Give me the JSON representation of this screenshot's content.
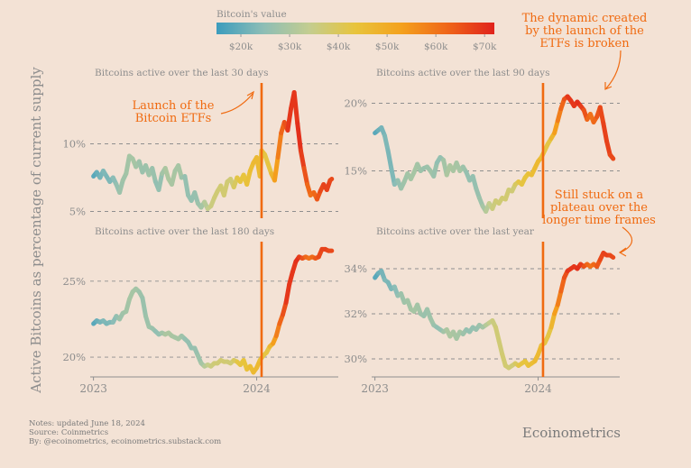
{
  "legend": {
    "title": "Bitcoin's value",
    "ticks": [
      "$20k",
      "$30k",
      "$40k",
      "$50k",
      "$60k",
      "$70k"
    ],
    "tick_values": [
      20,
      30,
      40,
      50,
      60,
      70
    ],
    "range": [
      15,
      72
    ],
    "colors": [
      "#3b9cbd",
      "#8cbdb6",
      "#c3cd90",
      "#e8c43c",
      "#f4a11d",
      "#ef6519",
      "#e0221c"
    ]
  },
  "ylabel": "Active Bitcoins as percentage of current supply",
  "annotations": {
    "etf_launch": "Launch of the\nBitcoin ETFs",
    "dynamic_broken": "The dynamic created\nby the launch of the\nETFs is broken",
    "plateau": "Still stuck on a\nplateau over the\nlonger time frames"
  },
  "notes": [
    "Notes: updated June 18, 2024",
    "Source: Coinmetrics",
    "By: @ecoinometrics, ecoinometrics.substack.com"
  ],
  "brand": "Ecoinometrics",
  "accent_color": "#f06a10",
  "chart_data": [
    {
      "type": "line",
      "title": "Bitcoins active over the last 30 days",
      "x_ticks": [
        "2023",
        "2024"
      ],
      "y_ticks": [
        "5%",
        "10%"
      ],
      "y_tick_values": [
        5,
        10
      ],
      "ylim": [
        4.5,
        14.5
      ],
      "x_range": [
        2022.98,
        2024.5
      ],
      "etf_launch_x": 2024.03,
      "x": [
        2023.0,
        2023.02,
        2023.04,
        2023.06,
        2023.08,
        2023.1,
        2023.12,
        2023.14,
        2023.16,
        2023.18,
        2023.2,
        2023.22,
        2023.24,
        2023.26,
        2023.28,
        2023.3,
        2023.32,
        2023.34,
        2023.36,
        2023.38,
        2023.4,
        2023.42,
        2023.44,
        2023.46,
        2023.48,
        2023.5,
        2023.52,
        2023.54,
        2023.56,
        2023.58,
        2023.6,
        2023.62,
        2023.64,
        2023.66,
        2023.68,
        2023.7,
        2023.72,
        2023.74,
        2023.76,
        2023.78,
        2023.8,
        2023.82,
        2023.84,
        2023.86,
        2023.88,
        2023.9,
        2023.92,
        2023.94,
        2023.96,
        2023.98,
        2024.0,
        2024.02,
        2024.03,
        2024.05,
        2024.07,
        2024.09,
        2024.11,
        2024.13,
        2024.15,
        2024.17,
        2024.19,
        2024.21,
        2024.23,
        2024.25,
        2024.27,
        2024.29,
        2024.31,
        2024.33,
        2024.35,
        2024.37,
        2024.39,
        2024.41,
        2024.43,
        2024.45,
        2024.46
      ],
      "y": [
        7.6,
        7.9,
        7.5,
        8.0,
        7.6,
        7.2,
        7.5,
        7.0,
        6.4,
        7.3,
        7.8,
        9.1,
        8.9,
        8.3,
        8.7,
        7.9,
        8.4,
        7.7,
        8.2,
        7.2,
        6.6,
        7.8,
        8.2,
        7.4,
        7.0,
        8.0,
        8.4,
        7.5,
        7.6,
        6.2,
        5.8,
        6.4,
        5.6,
        5.3,
        5.7,
        5.2,
        5.4,
        6.0,
        6.5,
        6.9,
        6.2,
        7.2,
        7.4,
        6.8,
        7.5,
        7.2,
        7.7,
        7.0,
        8.0,
        8.6,
        9.0,
        7.6,
        9.5,
        9.2,
        8.5,
        7.8,
        7.3,
        9.0,
        10.8,
        11.6,
        11.0,
        12.6,
        13.8,
        11.5,
        9.5,
        8.2,
        7.0,
        6.2,
        6.4,
        5.9,
        6.5,
        7.0,
        6.6,
        7.3,
        7.4
      ],
      "price": [
        17,
        20,
        21,
        23,
        23,
        22,
        24,
        25,
        27,
        28,
        28,
        29,
        29,
        29,
        28,
        27,
        27,
        28,
        28,
        26,
        25,
        27,
        30,
        30,
        30,
        29,
        29,
        29,
        26,
        26,
        26,
        26,
        27,
        28,
        30,
        34,
        35,
        37,
        37,
        37,
        38,
        37,
        37,
        37,
        42,
        43,
        43,
        44,
        45,
        46,
        47,
        46,
        46,
        42,
        43,
        43,
        52,
        55,
        62,
        63,
        68,
        70,
        68,
        70,
        70,
        66,
        64,
        60,
        61,
        63,
        66,
        67,
        68,
        67,
        66
      ]
    },
    {
      "type": "line",
      "title": "Bitcoins active over the last 90 days",
      "x_ticks": [],
      "y_ticks": [
        "15%",
        "20%"
      ],
      "y_tick_values": [
        15,
        20
      ],
      "ylim": [
        11.5,
        21.5
      ],
      "x_range": [
        2022.98,
        2024.5
      ],
      "etf_launch_x": 2024.03,
      "x": [
        2023.0,
        2023.02,
        2023.04,
        2023.06,
        2023.08,
        2023.1,
        2023.12,
        2023.14,
        2023.16,
        2023.18,
        2023.2,
        2023.22,
        2023.24,
        2023.26,
        2023.28,
        2023.3,
        2023.32,
        2023.34,
        2023.36,
        2023.38,
        2023.4,
        2023.42,
        2023.44,
        2023.46,
        2023.48,
        2023.5,
        2023.52,
        2023.54,
        2023.56,
        2023.58,
        2023.6,
        2023.62,
        2023.64,
        2023.66,
        2023.68,
        2023.7,
        2023.72,
        2023.74,
        2023.76,
        2023.78,
        2023.8,
        2023.82,
        2023.84,
        2023.86,
        2023.88,
        2023.9,
        2023.92,
        2023.94,
        2023.96,
        2023.98,
        2024.0,
        2024.02,
        2024.04,
        2024.06,
        2024.08,
        2024.1,
        2024.12,
        2024.14,
        2024.16,
        2024.18,
        2024.2,
        2024.22,
        2024.24,
        2024.26,
        2024.28,
        2024.3,
        2024.32,
        2024.34,
        2024.36,
        2024.38,
        2024.4,
        2024.42,
        2024.44,
        2024.46
      ],
      "y": [
        17.8,
        18.0,
        18.2,
        17.6,
        16.5,
        15.2,
        14.0,
        14.3,
        13.7,
        14.2,
        14.8,
        14.4,
        14.9,
        15.5,
        15.0,
        15.2,
        15.3,
        15.0,
        14.6,
        15.6,
        16.0,
        15.8,
        14.7,
        15.4,
        15.0,
        15.6,
        15.0,
        15.3,
        14.9,
        14.3,
        14.6,
        13.7,
        13.0,
        12.4,
        12.0,
        12.6,
        12.2,
        12.8,
        12.6,
        13.0,
        12.9,
        13.6,
        13.5,
        14.0,
        14.2,
        14.0,
        14.5,
        14.8,
        14.7,
        15.2,
        15.7,
        16.0,
        16.5,
        17.0,
        17.4,
        17.8,
        18.7,
        19.6,
        20.3,
        20.5,
        20.2,
        19.8,
        20.1,
        19.8,
        19.5,
        18.8,
        19.2,
        18.6,
        19.0,
        19.7,
        18.5,
        17.2,
        16.2,
        15.9
      ],
      "price": [
        17,
        20,
        21,
        23,
        23,
        22,
        24,
        25,
        27,
        28,
        28,
        29,
        29,
        29,
        28,
        27,
        27,
        28,
        28,
        26,
        25,
        27,
        30,
        30,
        30,
        29,
        29,
        29,
        26,
        26,
        26,
        26,
        27,
        28,
        30,
        34,
        35,
        37,
        37,
        37,
        38,
        37,
        37,
        37,
        42,
        43,
        43,
        44,
        45,
        46,
        47,
        46,
        43,
        42,
        43,
        52,
        55,
        62,
        63,
        68,
        70,
        68,
        70,
        70,
        66,
        64,
        60,
        61,
        63,
        66,
        67,
        68,
        67,
        66
      ]
    },
    {
      "type": "line",
      "title": "Bitcoins active over the last 180 days",
      "x_ticks": [
        "2023",
        "2024"
      ],
      "y_ticks": [
        "20%",
        "25%"
      ],
      "y_tick_values": [
        20,
        25
      ],
      "ylim": [
        18.7,
        27.6
      ],
      "x_range": [
        2022.98,
        2024.5
      ],
      "etf_launch_x": 2024.03,
      "x": [
        2023.0,
        2023.02,
        2023.04,
        2023.06,
        2023.08,
        2023.1,
        2023.12,
        2023.14,
        2023.16,
        2023.18,
        2023.2,
        2023.22,
        2023.24,
        2023.26,
        2023.28,
        2023.3,
        2023.32,
        2023.34,
        2023.36,
        2023.38,
        2023.4,
        2023.42,
        2023.44,
        2023.46,
        2023.48,
        2023.5,
        2023.52,
        2023.54,
        2023.56,
        2023.58,
        2023.6,
        2023.62,
        2023.64,
        2023.66,
        2023.68,
        2023.7,
        2023.72,
        2023.74,
        2023.76,
        2023.78,
        2023.8,
        2023.82,
        2023.84,
        2023.86,
        2023.88,
        2023.9,
        2023.92,
        2023.94,
        2023.96,
        2023.98,
        2024.0,
        2024.02,
        2024.04,
        2024.06,
        2024.08,
        2024.1,
        2024.12,
        2024.14,
        2024.16,
        2024.18,
        2024.2,
        2024.22,
        2024.24,
        2024.26,
        2024.28,
        2024.3,
        2024.32,
        2024.34,
        2024.36,
        2024.38,
        2024.4,
        2024.42,
        2024.44,
        2024.46
      ],
      "y": [
        22.2,
        22.4,
        22.3,
        22.4,
        22.2,
        22.3,
        22.3,
        22.7,
        22.5,
        22.9,
        23.0,
        23.8,
        24.3,
        24.5,
        24.3,
        23.9,
        22.7,
        22.0,
        21.9,
        21.7,
        21.5,
        21.6,
        21.5,
        21.6,
        21.4,
        21.3,
        21.2,
        21.4,
        21.2,
        21.0,
        20.6,
        20.6,
        20.1,
        19.6,
        19.4,
        19.5,
        19.4,
        19.6,
        19.6,
        19.8,
        19.7,
        19.7,
        19.6,
        19.8,
        19.7,
        19.5,
        19.8,
        19.2,
        19.4,
        19.0,
        19.3,
        19.8,
        20.1,
        20.3,
        20.7,
        20.9,
        21.4,
        22.2,
        22.8,
        23.6,
        24.8,
        25.6,
        26.3,
        26.6,
        26.5,
        26.6,
        26.5,
        26.6,
        26.5,
        26.6,
        27.1,
        27.1,
        27.0,
        27.0
      ],
      "price": [
        17,
        20,
        21,
        23,
        23,
        22,
        24,
        25,
        27,
        28,
        28,
        29,
        29,
        29,
        28,
        27,
        27,
        28,
        28,
        26,
        25,
        27,
        30,
        30,
        30,
        29,
        29,
        29,
        26,
        26,
        26,
        26,
        27,
        28,
        30,
        34,
        35,
        37,
        37,
        37,
        38,
        37,
        37,
        37,
        42,
        43,
        43,
        44,
        45,
        46,
        47,
        46,
        43,
        42,
        43,
        52,
        55,
        62,
        63,
        68,
        70,
        68,
        70,
        70,
        66,
        64,
        60,
        61,
        63,
        66,
        67,
        68,
        67,
        66
      ]
    },
    {
      "type": "line",
      "title": "Bitcoins active over the last year",
      "x_ticks": [
        "2023",
        "2024"
      ],
      "y_ticks": [
        "30%",
        "32%",
        "34%"
      ],
      "y_tick_values": [
        30,
        32,
        34
      ],
      "ylim": [
        29.2,
        35.2
      ],
      "x_range": [
        2022.98,
        2024.5
      ],
      "etf_launch_x": 2024.03,
      "x": [
        2023.0,
        2023.02,
        2023.04,
        2023.06,
        2023.08,
        2023.1,
        2023.12,
        2023.14,
        2023.16,
        2023.18,
        2023.2,
        2023.22,
        2023.24,
        2023.26,
        2023.28,
        2023.3,
        2023.32,
        2023.34,
        2023.36,
        2023.38,
        2023.4,
        2023.42,
        2023.44,
        2023.46,
        2023.48,
        2023.5,
        2023.52,
        2023.54,
        2023.56,
        2023.58,
        2023.6,
        2023.62,
        2023.64,
        2023.66,
        2023.68,
        2023.7,
        2023.72,
        2023.74,
        2023.76,
        2023.78,
        2023.8,
        2023.82,
        2023.84,
        2023.86,
        2023.88,
        2023.9,
        2023.92,
        2023.94,
        2023.96,
        2023.98,
        2024.0,
        2024.02,
        2024.04,
        2024.06,
        2024.08,
        2024.1,
        2024.12,
        2024.14,
        2024.16,
        2024.18,
        2024.2,
        2024.22,
        2024.24,
        2024.26,
        2024.28,
        2024.3,
        2024.32,
        2024.34,
        2024.36,
        2024.38,
        2024.4,
        2024.42,
        2024.44,
        2024.46
      ],
      "y": [
        33.6,
        33.8,
        33.9,
        33.5,
        33.4,
        33.1,
        33.2,
        32.8,
        32.9,
        32.5,
        32.6,
        32.2,
        32.1,
        32.4,
        32.0,
        31.9,
        32.2,
        31.8,
        31.5,
        31.4,
        31.3,
        31.2,
        31.3,
        31.0,
        31.2,
        30.9,
        31.2,
        31.1,
        31.3,
        31.2,
        31.4,
        31.3,
        31.5,
        31.4,
        31.5,
        31.6,
        31.7,
        31.4,
        30.8,
        30.2,
        29.7,
        29.6,
        29.7,
        29.8,
        29.7,
        29.8,
        29.9,
        29.7,
        29.8,
        29.9,
        30.2,
        30.6,
        30.7,
        31.0,
        31.4,
        32.0,
        32.4,
        33.0,
        33.6,
        33.9,
        34.0,
        34.1,
        34.0,
        34.2,
        34.1,
        34.2,
        34.1,
        34.2,
        34.1,
        34.4,
        34.7,
        34.6,
        34.6,
        34.5
      ],
      "price": [
        17,
        20,
        21,
        23,
        23,
        22,
        24,
        25,
        27,
        28,
        28,
        29,
        29,
        29,
        28,
        27,
        27,
        28,
        28,
        26,
        25,
        27,
        30,
        30,
        30,
        29,
        29,
        29,
        26,
        26,
        26,
        26,
        27,
        28,
        30,
        34,
        35,
        37,
        37,
        37,
        38,
        37,
        37,
        37,
        42,
        43,
        43,
        44,
        45,
        46,
        47,
        46,
        43,
        42,
        43,
        52,
        55,
        62,
        63,
        68,
        70,
        68,
        70,
        70,
        66,
        64,
        60,
        61,
        63,
        66,
        67,
        68,
        67,
        66
      ]
    }
  ]
}
